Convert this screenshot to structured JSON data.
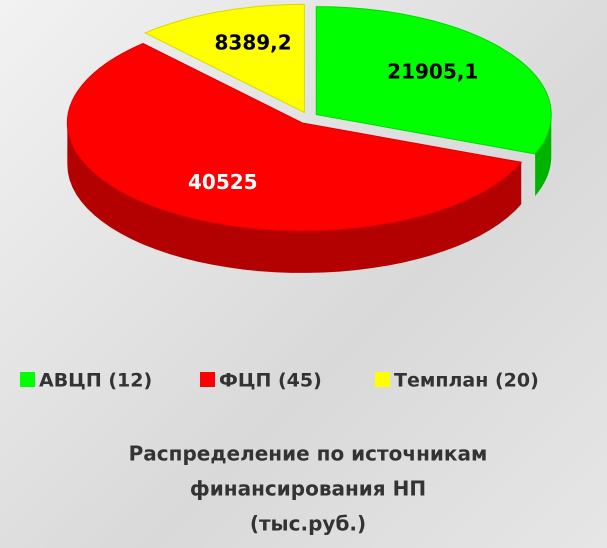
{
  "chart_data": {
    "type": "pie3d",
    "title": [
      "Распределение по источникам",
      "финансирования НП",
      "(тыс.руб.)"
    ],
    "categories": [
      "АВЦП (12)",
      "ФЦП (45)",
      "Темплан (20)"
    ],
    "values": [
      21905.1,
      40525,
      8389.2
    ],
    "value_labels": [
      "21905,1",
      "40525",
      "8389,2"
    ],
    "colors": [
      "#00ff00",
      "#ff0000",
      "#ffff00"
    ],
    "label_colors": [
      "#000000",
      "#ffffff",
      "#000000"
    ]
  }
}
